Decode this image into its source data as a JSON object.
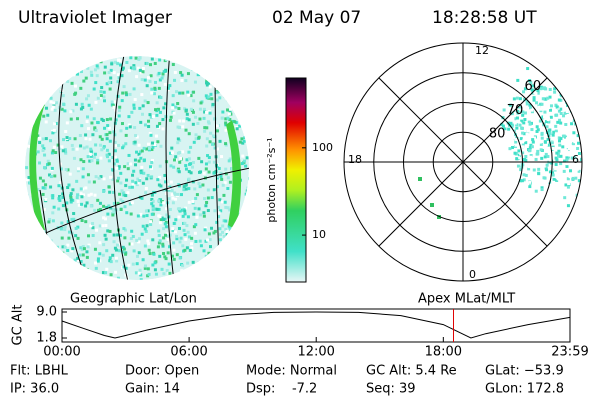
{
  "header": {
    "instrument": "Ultraviolet Imager",
    "date": "02 May 07",
    "time": "18:28:58 UT"
  },
  "colorbar": {
    "label": "photon cm⁻²s⁻¹",
    "scale": "log",
    "lim": [
      2.9,
      631
    ],
    "ticks": [
      10,
      100
    ]
  },
  "polar": {
    "rlim": [
      90,
      50
    ],
    "rings": [
      80,
      70,
      60
    ],
    "mlt_labels": [
      "12",
      "18",
      "6",
      "0"
    ]
  },
  "orbit": {
    "left_label": "Geographic Lat/Lon",
    "right_label": "Apex MLat/MLT",
    "ylabel": "GC Alt",
    "ylim": [
      1.8,
      9.0
    ],
    "yticks": [
      {
        "value": 9.0,
        "label": "9.0"
      },
      {
        "value": 1.8,
        "label": "1.8"
      }
    ],
    "xlim": [
      0,
      23.98
    ],
    "xticks": [
      {
        "value": 0,
        "label": "00:00"
      },
      {
        "value": 6,
        "label": "06:00"
      },
      {
        "value": 12,
        "label": "12:00"
      },
      {
        "value": 18,
        "label": "18:00"
      },
      {
        "value": 23.98,
        "label": "23:59"
      }
    ],
    "x": [
      0,
      1,
      2,
      2.5,
      3,
      4,
      6,
      8,
      10,
      12,
      14,
      16,
      18,
      19.3,
      20,
      22,
      23.98
    ],
    "values": [
      6.5,
      4.5,
      2.5,
      1.8,
      2.5,
      4,
      6.5,
      8.2,
      8.9,
      9.0,
      8.9,
      8,
      5.5,
      1.8,
      3,
      5.5,
      7.5
    ],
    "marker_x": 18.48,
    "marker_color": "#e00000"
  },
  "info": [
    [
      "Flt: LBHL",
      "Door: Open",
      "Mode: Normal",
      "GC Alt: 5.4 Re",
      "GLat: −53.9"
    ],
    [
      "IP: 36.0",
      "Gain: 14",
      "Dsp:    -7.2",
      "Seq: 39",
      "GLon: 172.8"
    ]
  ]
}
